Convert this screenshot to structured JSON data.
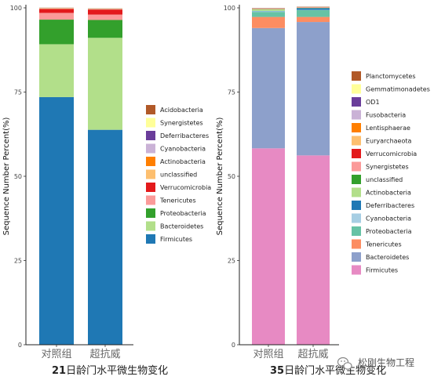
{
  "chart_data": [
    {
      "type": "bar",
      "stacked": true,
      "title_prefix": "21",
      "title_rest": "日龄门水平微生物变化",
      "xlabel": "",
      "ylabel": "Sequence Number Percent(%)",
      "ylim": [
        0,
        100
      ],
      "yticks": [
        "0",
        "25",
        "50",
        "75",
        "100"
      ],
      "categories": [
        "对照组",
        "超抗威"
      ],
      "legend_position": "right",
      "series": [
        {
          "name": "Firmicutes",
          "color": "#1f78b4",
          "values": [
            73.5,
            63.8
          ]
        },
        {
          "name": "Bacteroidetes",
          "color": "#b2df8a",
          "values": [
            15.7,
            27.3
          ]
        },
        {
          "name": "Proteobacteria",
          "color": "#33a02c",
          "values": [
            7.3,
            5.3
          ]
        },
        {
          "name": "Tenericutes",
          "color": "#fb9a99",
          "values": [
            2.0,
            1.6
          ]
        },
        {
          "name": "Verrucomicrobia",
          "color": "#e31a1c",
          "values": [
            1.2,
            1.5
          ]
        },
        {
          "name": "unclassified",
          "color": "#fdbf6f",
          "values": [
            0.1,
            0.1
          ]
        },
        {
          "name": "Actinobacteria",
          "color": "#ff7f00",
          "values": [
            0.05,
            0.05
          ]
        },
        {
          "name": "Cyanobacteria",
          "color": "#cab2d6",
          "values": [
            0.05,
            0.05
          ]
        },
        {
          "name": "Deferribacteres",
          "color": "#6a3d9a",
          "values": [
            0.05,
            0.05
          ]
        },
        {
          "name": "Synergistetes",
          "color": "#ffff99",
          "values": [
            0.05,
            0.05
          ]
        },
        {
          "name": "Acidobacteria",
          "color": "#b15928",
          "values": [
            0.05,
            0.05
          ]
        }
      ]
    },
    {
      "type": "bar",
      "stacked": true,
      "title_prefix": "35",
      "title_rest": "日龄门水平微生物变化",
      "xlabel": "",
      "ylabel": "Sequence Number Percent(%)",
      "ylim": [
        0,
        100
      ],
      "yticks": [
        "0",
        "25",
        "50",
        "75",
        "100"
      ],
      "categories": [
        "对照组",
        "超抗威"
      ],
      "legend_position": "right",
      "series": [
        {
          "name": "Firmicutes",
          "color": "#e78ac3",
          "values": [
            58.3,
            56.2
          ]
        },
        {
          "name": "Bacteroidetes",
          "color": "#8da0cb",
          "values": [
            35.7,
            39.6
          ]
        },
        {
          "name": "Tenericutes",
          "color": "#fc8d62",
          "values": [
            3.3,
            1.5
          ]
        },
        {
          "name": "Proteobacteria",
          "color": "#66c2a5",
          "values": [
            1.5,
            2.0
          ]
        },
        {
          "name": "Cyanobacteria",
          "color": "#a6cee3",
          "values": [
            0.2,
            0.1
          ]
        },
        {
          "name": "Deferribacteres",
          "color": "#1f78b4",
          "values": [
            0.1,
            0.5
          ]
        },
        {
          "name": "Actinobacteria",
          "color": "#b2df8a",
          "values": [
            0.4,
            0.05
          ]
        },
        {
          "name": "unclassified",
          "color": "#33a02c",
          "values": [
            0.1,
            0.05
          ]
        },
        {
          "name": "Synergistetes",
          "color": "#fb9a99",
          "values": [
            0.05,
            0.05
          ]
        },
        {
          "name": "Verrucomicrobia",
          "color": "#e31a1c",
          "values": [
            0.05,
            0.05
          ]
        },
        {
          "name": "Euryarchaeota",
          "color": "#fdbf6f",
          "values": [
            0.05,
            0.05
          ]
        },
        {
          "name": "Lentisphaerae",
          "color": "#ff7f00",
          "values": [
            0.05,
            0.05
          ]
        },
        {
          "name": "Fusobacteria",
          "color": "#cab2d6",
          "values": [
            0.05,
            0.05
          ]
        },
        {
          "name": "OD1",
          "color": "#6a3d9a",
          "values": [
            0.05,
            0.05
          ]
        },
        {
          "name": "Gemmatimonadetes",
          "color": "#ffff99",
          "values": [
            0.05,
            0.05
          ]
        },
        {
          "name": "Planctomycetes",
          "color": "#b15928",
          "values": [
            0.05,
            0.05
          ]
        }
      ]
    }
  ],
  "watermark": {
    "icon": "wechat-icon",
    "text": "松刚生物工程"
  }
}
